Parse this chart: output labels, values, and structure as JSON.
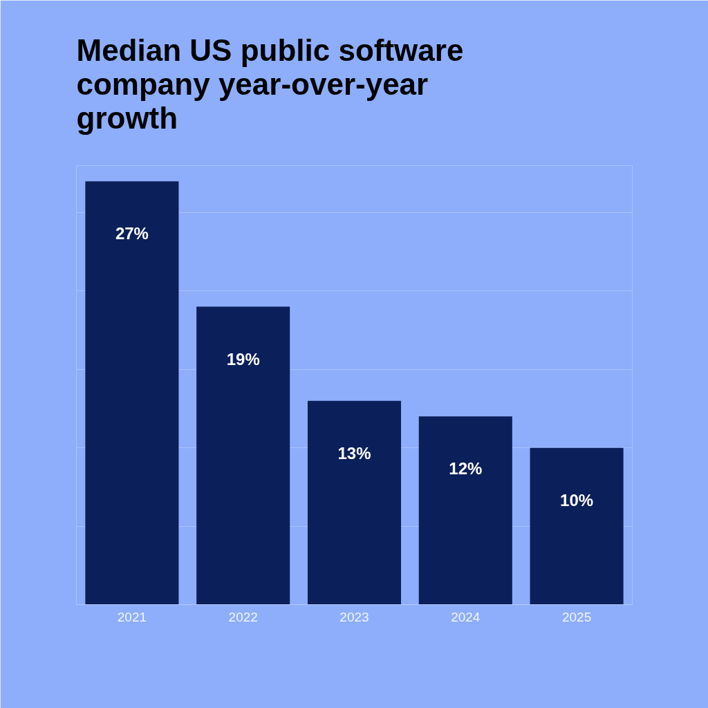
{
  "chart_data": {
    "type": "bar",
    "title": "Median US public software company year-over-year growth",
    "categories": [
      "2021",
      "2022",
      "2023",
      "2024",
      "2025"
    ],
    "values": [
      27,
      19,
      13,
      12,
      10
    ],
    "value_labels": [
      "27%",
      "19%",
      "13%",
      "12%",
      "10%"
    ],
    "color": "#0b1f5a",
    "ylim": [
      0,
      28
    ],
    "yticks": [
      {
        "value": 0,
        "label": null
      },
      {
        "value": 5,
        "label": null
      },
      {
        "value": 10,
        "label": null
      },
      {
        "value": 15,
        "label": null
      },
      {
        "value": 20,
        "label": null
      },
      {
        "value": 25,
        "label": null
      }
    ],
    "grid": "y",
    "tick_labels": "x"
  }
}
